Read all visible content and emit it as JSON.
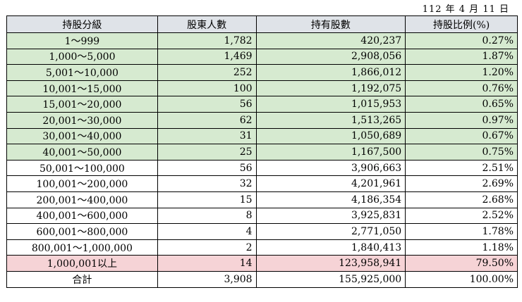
{
  "date": "112 年 4 月 11 日",
  "headers": [
    "持股分級",
    "股東人數",
    "持有股數",
    "持股比例(%)"
  ],
  "rows": [
    {
      "level": "1～999",
      "holders": "1,782",
      "shares": "420,237",
      "ratio": "0.27%",
      "tone": "green"
    },
    {
      "level": "1,000～5,000",
      "holders": "1,469",
      "shares": "2,908,056",
      "ratio": "1.87%",
      "tone": "green"
    },
    {
      "level": "5,001～10,000",
      "holders": "252",
      "shares": "1,866,012",
      "ratio": "1.20%",
      "tone": "green"
    },
    {
      "level": "10,001～15,000",
      "holders": "100",
      "shares": "1,192,075",
      "ratio": "0.76%",
      "tone": "green"
    },
    {
      "level": "15,001～20,000",
      "holders": "56",
      "shares": "1,015,953",
      "ratio": "0.65%",
      "tone": "green"
    },
    {
      "level": "20,001～30,000",
      "holders": "62",
      "shares": "1,513,265",
      "ratio": "0.97%",
      "tone": "green"
    },
    {
      "level": "30,001～40,000",
      "holders": "31",
      "shares": "1,050,689",
      "ratio": "0.67%",
      "tone": "green"
    },
    {
      "level": "40,001～50,000",
      "holders": "25",
      "shares": "1,167,500",
      "ratio": "0.75%",
      "tone": "green"
    },
    {
      "level": "50,001～100,000",
      "holders": "56",
      "shares": "3,906,663",
      "ratio": "2.51%",
      "tone": "white"
    },
    {
      "level": "100,001～200,000",
      "holders": "32",
      "shares": "4,201,961",
      "ratio": "2.69%",
      "tone": "white"
    },
    {
      "level": "200,001～400,000",
      "holders": "15",
      "shares": "4,186,354",
      "ratio": "2.68%",
      "tone": "white"
    },
    {
      "level": "400,001～600,000",
      "holders": "8",
      "shares": "3,925,831",
      "ratio": "2.52%",
      "tone": "white"
    },
    {
      "level": "600,001～800,000",
      "holders": "4",
      "shares": "2,771,050",
      "ratio": "1.78%",
      "tone": "white"
    },
    {
      "level": "800,001～1,000,000",
      "holders": "2",
      "shares": "1,840,413",
      "ratio": "1.18%",
      "tone": "white"
    },
    {
      "level": "1,000,001以上",
      "holders": "14",
      "shares": "123,958,941",
      "ratio": "79.50%",
      "tone": "pink"
    }
  ],
  "total": {
    "label": "合計",
    "holders": "3,908",
    "shares": "155,925,000",
    "ratio": "100.00%"
  }
}
